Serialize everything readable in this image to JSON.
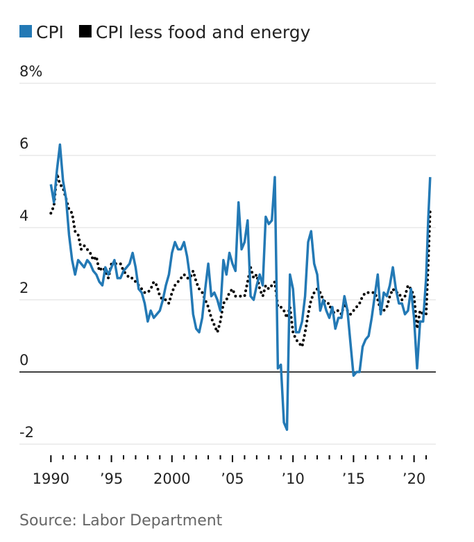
{
  "chart_data": {
    "type": "line",
    "series": [
      {
        "name": "CPI",
        "color": "#2379b5",
        "style": "solid",
        "values": [
          5.2,
          4.7,
          5.6,
          6.3,
          5.3,
          4.8,
          3.8,
          3.1,
          2.7,
          3.1,
          3.0,
          2.9,
          3.1,
          3.0,
          2.8,
          2.7,
          2.5,
          2.4,
          2.9,
          2.7,
          2.9,
          3.1,
          2.6,
          2.6,
          2.8,
          2.9,
          3.0,
          3.3,
          2.9,
          2.3,
          2.2,
          1.9,
          1.4,
          1.7,
          1.5,
          1.6,
          1.7,
          2.0,
          2.4,
          2.7,
          3.3,
          3.6,
          3.4,
          3.4,
          3.6,
          3.2,
          2.6,
          1.6,
          1.2,
          1.1,
          1.5,
          2.3,
          3.0,
          2.1,
          2.2,
          2.0,
          1.7,
          3.1,
          2.7,
          3.3,
          3.0,
          2.8,
          4.7,
          3.4,
          3.6,
          4.2,
          2.1,
          2.0,
          2.4,
          2.7,
          2.4,
          4.3,
          4.1,
          4.2,
          5.4,
          0.1,
          0.2,
          -1.4,
          -1.6,
          2.7,
          2.3,
          1.1,
          1.1,
          1.4,
          2.1,
          3.6,
          3.9,
          3.0,
          2.7,
          1.7,
          2.0,
          1.7,
          1.5,
          1.8,
          1.2,
          1.5,
          1.5,
          2.1,
          1.7,
          0.8,
          -0.1,
          0.0,
          0.0,
          0.7,
          0.9,
          1.0,
          1.5,
          2.1,
          2.7,
          1.6,
          2.2,
          2.1,
          2.4,
          2.9,
          2.3,
          1.9,
          1.9,
          1.6,
          1.7,
          2.3,
          1.5,
          0.1,
          1.4,
          1.4,
          2.6,
          4.2,
          5.4
        ]
      },
      {
        "name": "CPI less food and energy",
        "color": "#000000",
        "style": "dotted",
        "values": [
          4.4,
          4.6,
          5.5,
          5.2,
          5.1,
          4.8,
          4.5,
          4.4,
          3.9,
          3.8,
          3.4,
          3.5,
          3.4,
          3.3,
          3.1,
          3.2,
          2.8,
          2.9,
          2.8,
          2.6,
          3.0,
          3.0,
          3.0,
          3.0,
          2.8,
          2.7,
          2.6,
          2.6,
          2.5,
          2.4,
          2.3,
          2.2,
          2.2,
          2.3,
          2.5,
          2.4,
          2.1,
          2.0,
          2.0,
          1.9,
          2.2,
          2.4,
          2.5,
          2.6,
          2.7,
          2.6,
          2.6,
          2.8,
          2.5,
          2.3,
          2.2,
          2.0,
          1.8,
          1.5,
          1.3,
          1.1,
          1.4,
          1.9,
          2.0,
          2.2,
          2.3,
          2.1,
          2.1,
          2.1,
          2.1,
          2.5,
          2.9,
          2.6,
          2.7,
          2.3,
          2.1,
          2.4,
          2.3,
          2.4,
          2.5,
          1.8,
          1.8,
          1.7,
          1.5,
          1.8,
          1.1,
          0.9,
          0.8,
          0.7,
          1.1,
          1.6,
          2.0,
          2.2,
          2.3,
          2.2,
          2.0,
          1.9,
          1.9,
          1.6,
          1.7,
          1.7,
          1.6,
          1.9,
          1.7,
          1.6,
          1.7,
          1.8,
          1.9,
          2.1,
          2.2,
          2.2,
          2.2,
          2.2,
          2.0,
          1.7,
          1.7,
          1.8,
          2.1,
          2.3,
          2.2,
          2.2,
          2.0,
          2.1,
          2.4,
          2.3,
          2.1,
          1.2,
          1.7,
          1.6,
          1.6,
          3.0,
          4.5
        ]
      }
    ],
    "x": [
      1990,
      1990.25,
      1990.5,
      1990.75,
      1991,
      1991.25,
      1991.5,
      1991.75,
      1992,
      1992.25,
      1992.5,
      1992.75,
      1993,
      1993.25,
      1993.5,
      1993.75,
      1994,
      1994.25,
      1994.5,
      1994.75,
      1995,
      1995.25,
      1995.5,
      1995.75,
      1996,
      1996.25,
      1996.5,
      1996.75,
      1997,
      1997.25,
      1997.5,
      1997.75,
      1998,
      1998.25,
      1998.5,
      1998.75,
      1999,
      1999.25,
      1999.5,
      1999.75,
      2000,
      2000.25,
      2000.5,
      2000.75,
      2001,
      2001.25,
      2001.5,
      2001.75,
      2002,
      2002.25,
      2002.5,
      2002.75,
      2003,
      2003.25,
      2003.5,
      2003.75,
      2004,
      2004.25,
      2004.5,
      2004.75,
      2005,
      2005.25,
      2005.5,
      2005.75,
      2006,
      2006.25,
      2006.5,
      2006.75,
      2007,
      2007.25,
      2007.5,
      2007.75,
      2008,
      2008.25,
      2008.5,
      2008.75,
      2009,
      2009.25,
      2009.5,
      2009.75,
      2010,
      2010.25,
      2010.5,
      2010.75,
      2011,
      2011.25,
      2011.5,
      2011.75,
      2012,
      2012.25,
      2012.5,
      2012.75,
      2013,
      2013.25,
      2013.5,
      2013.75,
      2014,
      2014.25,
      2014.5,
      2014.75,
      2015,
      2015.25,
      2015.5,
      2015.75,
      2016,
      2016.25,
      2016.5,
      2016.75,
      2017,
      2017.25,
      2017.5,
      2017.75,
      2018,
      2018.25,
      2018.5,
      2018.75,
      2019,
      2019.25,
      2019.5,
      2019.75,
      2020,
      2020.25,
      2020.5,
      2020.75,
      2021,
      2021.17,
      2021.33
    ],
    "xlim": [
      1987.4,
      2021.8
    ],
    "xticks": [
      {
        "value": 1990,
        "label": "1990"
      },
      {
        "value": 1995,
        "label": "’95"
      },
      {
        "value": 2000,
        "label": "2000"
      },
      {
        "value": 2005,
        "label": "’05"
      },
      {
        "value": 2010,
        "label": "’10"
      },
      {
        "value": 2015,
        "label": "’15"
      },
      {
        "value": 2020,
        "label": "’20"
      }
    ],
    "minor_xticks": [
      1991,
      1992,
      1993,
      1994,
      1996,
      1997,
      1998,
      1999,
      2001,
      2002,
      2003,
      2004,
      2006,
      2007,
      2008,
      2009,
      2011,
      2012,
      2013,
      2014,
      2016,
      2017,
      2018,
      2019,
      2021
    ],
    "ylim": [
      -2,
      8
    ],
    "yticks": [
      -2,
      0,
      2,
      4,
      6,
      {
        "value": 8,
        "label": "8%"
      }
    ],
    "grid": true,
    "source": "Source: Labor Department"
  }
}
